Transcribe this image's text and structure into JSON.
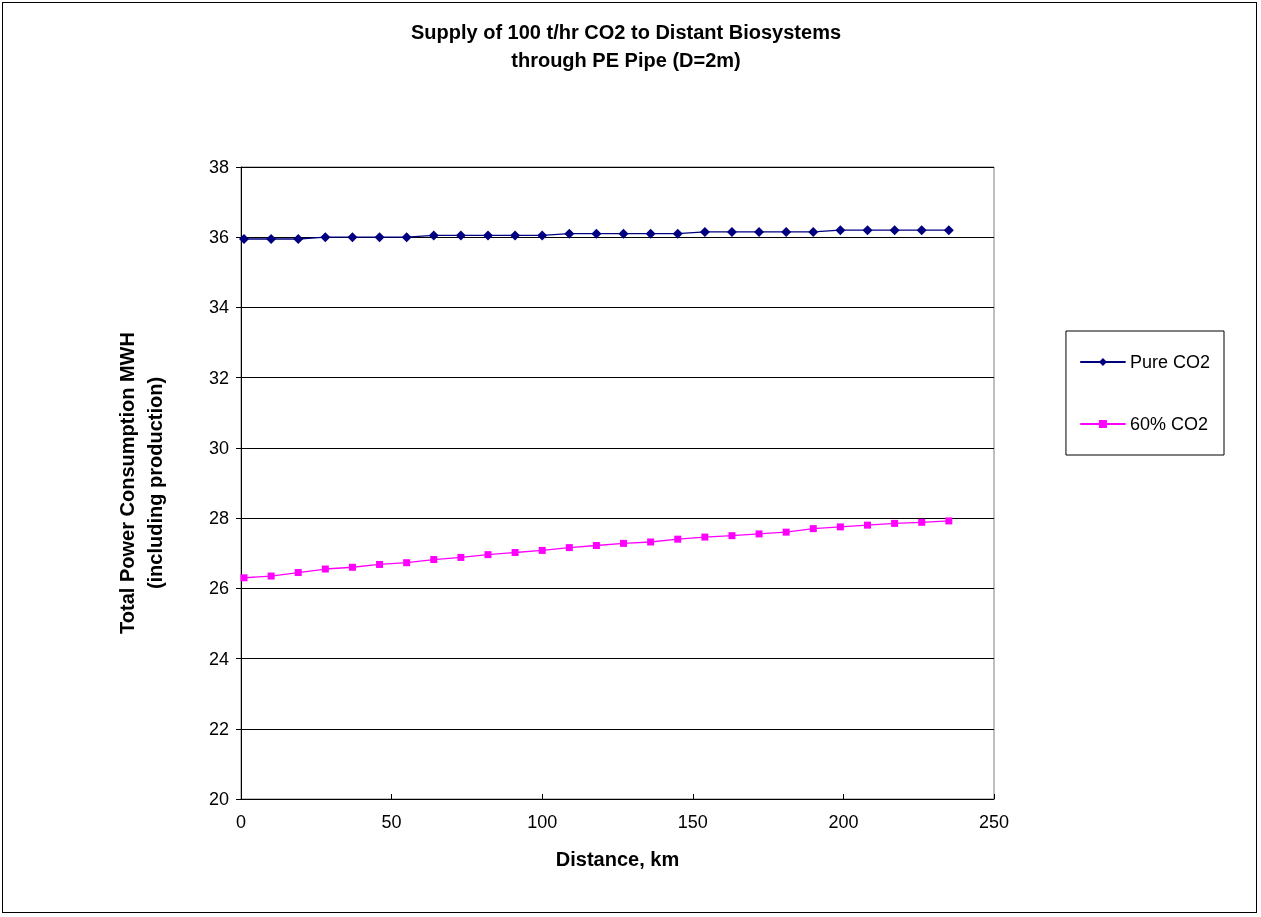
{
  "chart_data": {
    "type": "line",
    "title": "Supply of 100 t/hr CO2 to Distant Biosystems\nthrough PE Pipe (D=2m)",
    "xlabel": "Distance, km",
    "ylabel": "Total Power Consumption MWH\n(including production)",
    "x": [
      1,
      10,
      19,
      28,
      37,
      46,
      55,
      64,
      73,
      82,
      91,
      100,
      109,
      118,
      127,
      136,
      145,
      154,
      163,
      172,
      181,
      190,
      199,
      208,
      217,
      226,
      235
    ],
    "series": [
      {
        "name": "Pure CO2",
        "color": "#000080",
        "marker": "diamond",
        "values": [
          35.95,
          35.95,
          35.95,
          36.0,
          36.0,
          36.0,
          36.0,
          36.05,
          36.05,
          36.05,
          36.05,
          36.05,
          36.1,
          36.1,
          36.1,
          36.1,
          36.1,
          36.15,
          36.15,
          36.15,
          36.15,
          36.15,
          36.2,
          36.2,
          36.2,
          36.2,
          36.2
        ]
      },
      {
        "name": "60% CO2",
        "color": "#ff00ff",
        "marker": "square",
        "values": [
          26.3,
          26.35,
          26.45,
          26.55,
          26.6,
          26.68,
          26.73,
          26.82,
          26.88,
          26.96,
          27.02,
          27.08,
          27.16,
          27.22,
          27.28,
          27.32,
          27.4,
          27.46,
          27.5,
          27.55,
          27.6,
          27.7,
          27.75,
          27.8,
          27.85,
          27.88,
          27.92
        ]
      }
    ],
    "xlim": [
      0,
      250
    ],
    "xticks": [
      0,
      50,
      100,
      150,
      200,
      250
    ],
    "ylim": [
      20,
      38
    ],
    "yticks": [
      20,
      22,
      24,
      26,
      28,
      30,
      32,
      34,
      36,
      38
    ],
    "grid": "y",
    "legend": "right",
    "line_style": "solid"
  }
}
